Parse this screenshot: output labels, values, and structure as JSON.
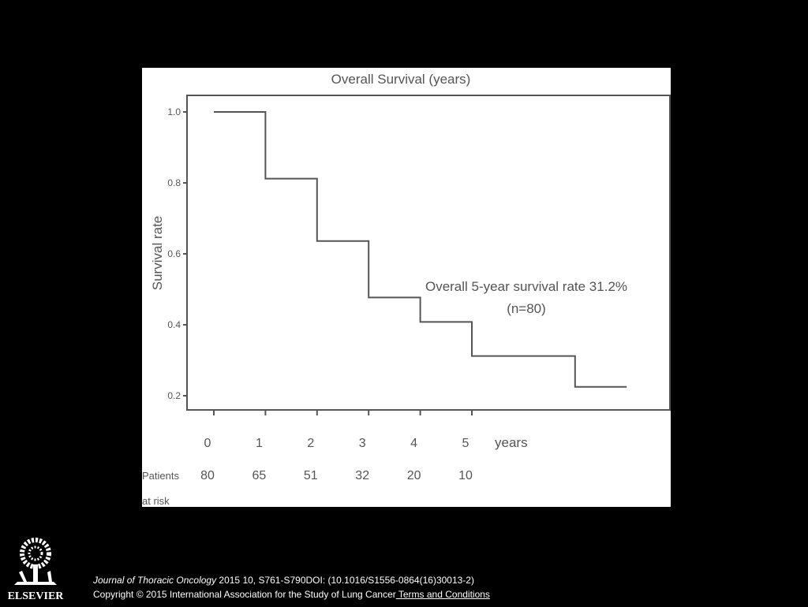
{
  "chart_data": {
    "type": "line",
    "subtype": "step",
    "title": "Overall Survival (years)",
    "ylabel": "Survival rate",
    "xunit_label": "years",
    "ylim": [
      0.2,
      1.0
    ],
    "yticks": [
      "1.0",
      "0.8",
      "0.6",
      "0.4",
      "0.2"
    ],
    "ytick_values": [
      1.0,
      0.8,
      0.6,
      0.4,
      0.2
    ],
    "xticks": [
      "0",
      "1",
      "2",
      "3",
      "4",
      "5"
    ],
    "xtick_values": [
      0,
      1,
      2,
      3,
      4,
      5
    ],
    "series": [
      {
        "x": [
          0,
          1,
          2,
          3,
          4,
          5,
          7,
          8
        ],
        "y": [
          1.0,
          0.812,
          0.636,
          0.477,
          0.408,
          0.312,
          0.225,
          0.225
        ]
      }
    ],
    "annotation": [
      "Overall 5-year survival rate 31.2%",
      "(n=80)"
    ],
    "risk_table": {
      "label_line1": "Patients",
      "label_line2": "at risk",
      "values": [
        "80",
        "65",
        "51",
        "32",
        "20",
        "10"
      ]
    },
    "grid": false
  },
  "footer": {
    "publisher_logo_text": "ELSEVIER",
    "journal": "Journal of Thoracic Oncology",
    "citation": " 2015 10, S761-S790DOI: (10.1016/S1556-0864(16)30013-2)",
    "copyright": "Copyright © 2015 International Association for the Study of Lung Cancer",
    "terms_link": " Terms and Conditions"
  }
}
